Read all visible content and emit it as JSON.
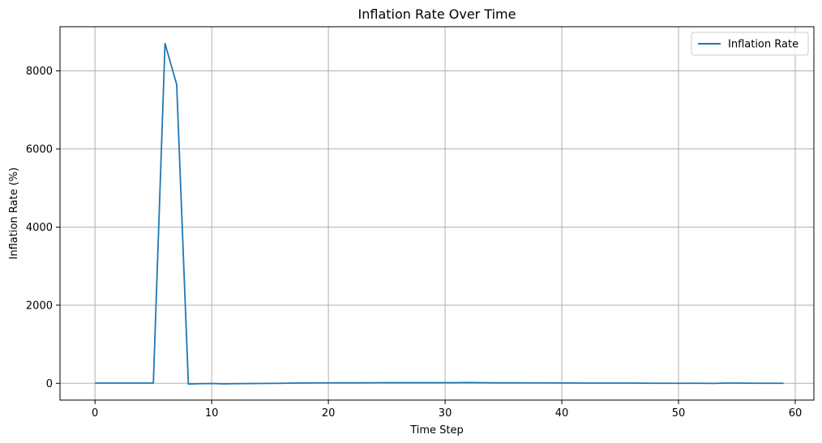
{
  "chart_data": {
    "type": "line",
    "title": "Inflation Rate Over Time",
    "xlabel": "Time Step",
    "ylabel": "Inflation Rate (%)",
    "xlim": [
      -3,
      61.6
    ],
    "ylim": [
      -430,
      9130
    ],
    "x_ticks": [
      0,
      10,
      20,
      30,
      40,
      50,
      60
    ],
    "y_ticks": [
      0,
      2000,
      4000,
      6000,
      8000
    ],
    "grid": true,
    "legend_position": "top-right",
    "series": [
      {
        "name": "Inflation Rate",
        "color": "#1f77b4",
        "x": [
          0,
          1,
          2,
          3,
          4,
          5,
          6,
          7,
          8,
          9,
          10,
          11,
          12,
          13,
          14,
          15,
          16,
          17,
          18,
          19,
          20,
          21,
          22,
          23,
          24,
          25,
          26,
          27,
          28,
          29,
          30,
          31,
          32,
          33,
          34,
          35,
          36,
          37,
          38,
          39,
          40,
          41,
          42,
          43,
          44,
          45,
          46,
          47,
          48,
          49,
          50,
          51,
          52,
          53,
          54,
          55,
          56,
          57,
          58,
          59
        ],
        "values": [
          5,
          5,
          5,
          5,
          5,
          5,
          8700,
          7650,
          -20,
          -10,
          -5,
          -15,
          -10,
          -8,
          -5,
          -3,
          0,
          5,
          8,
          10,
          10,
          12,
          12,
          12,
          13,
          15,
          15,
          15,
          15,
          15,
          15,
          15,
          20,
          15,
          12,
          12,
          12,
          10,
          10,
          10,
          8,
          8,
          5,
          5,
          5,
          5,
          5,
          3,
          0,
          0,
          0,
          0,
          0,
          -3,
          5,
          5,
          3,
          0,
          0,
          0
        ]
      }
    ]
  }
}
